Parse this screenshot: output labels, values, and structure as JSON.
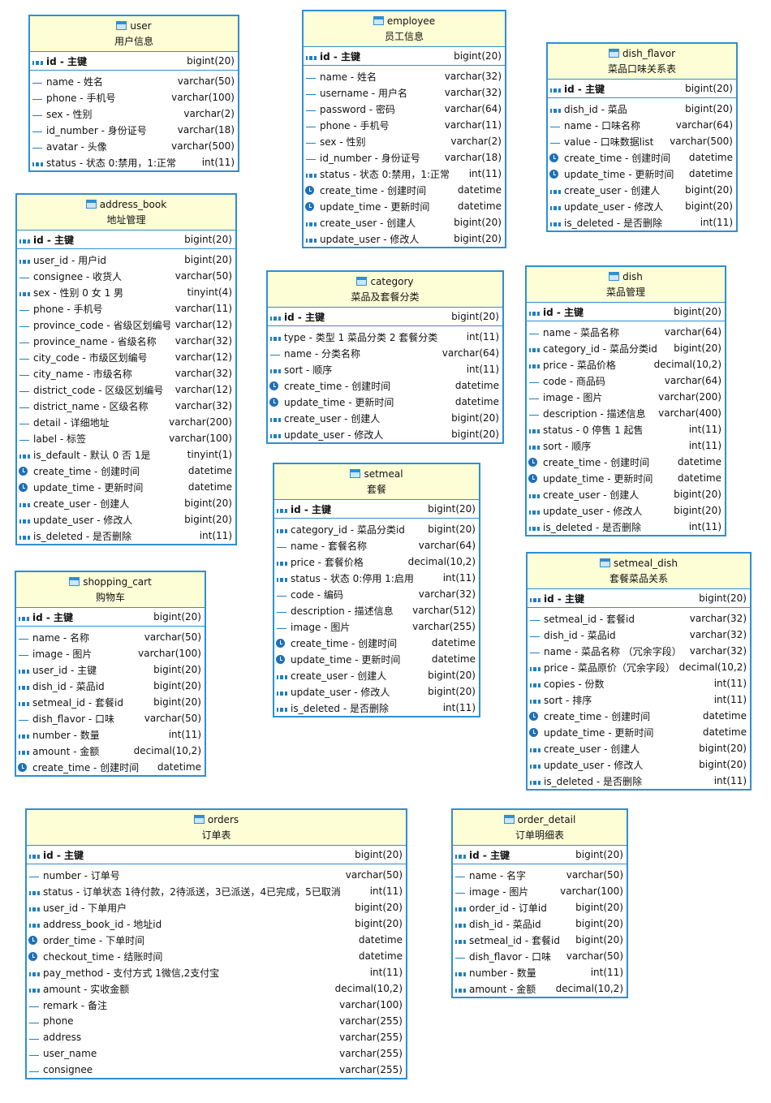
{
  "tables": [
    {
      "name": "user",
      "comment": "用户信息",
      "pk": [
        "id - 主键",
        "bigint(20)"
      ],
      "columns": [
        [
          "name - 姓名",
          "varchar(50)"
        ],
        [
          "phone - 手机号",
          "varchar(100)"
        ],
        [
          "sex - 性别",
          "varchar(2)"
        ],
        [
          "id_number - 身份证号",
          "varchar(18)"
        ],
        [
          "avatar - 头像",
          "varchar(500)"
        ],
        [
          "status - 状态 0:禁用，1:正常",
          "int(11)"
        ]
      ]
    },
    {
      "name": "employee",
      "comment": "员工信息",
      "pk": [
        "id - 主键",
        "bigint(20)"
      ],
      "columns": [
        [
          "name - 姓名",
          "varchar(32)"
        ],
        [
          "username - 用户名",
          "varchar(32)"
        ],
        [
          "password - 密码",
          "varchar(64)"
        ],
        [
          "phone - 手机号",
          "varchar(11)"
        ],
        [
          "sex - 性别",
          "varchar(2)"
        ],
        [
          "id_number - 身份证号",
          "varchar(18)"
        ],
        [
          "status - 状态 0:禁用，1:正常",
          "int(11)"
        ],
        [
          "create_time - 创建时间",
          "datetime"
        ],
        [
          "update_time - 更新时间",
          "datetime"
        ],
        [
          "create_user - 创建人",
          "bigint(20)"
        ],
        [
          "update_user - 修改人",
          "bigint(20)"
        ]
      ]
    },
    {
      "name": "dish_flavor",
      "comment": "菜品口味关系表",
      "pk": [
        "id - 主键",
        "bigint(20)"
      ],
      "columns": [
        [
          "dish_id - 菜品",
          "bigint(20)"
        ],
        [
          "name - 口味名称",
          "varchar(64)"
        ],
        [
          "value - 口味数据list",
          "varchar(500)"
        ],
        [
          "create_time - 创建时间",
          "datetime"
        ],
        [
          "update_time - 更新时间",
          "datetime"
        ],
        [
          "create_user - 创建人",
          "bigint(20)"
        ],
        [
          "update_user - 修改人",
          "bigint(20)"
        ],
        [
          "is_deleted - 是否删除",
          "int(11)"
        ]
      ]
    },
    {
      "name": "address_book",
      "comment": "地址管理",
      "pk": [
        "id - 主键",
        "bigint(20)"
      ],
      "columns": [
        [
          "user_id - 用户id",
          "bigint(20)"
        ],
        [
          "consignee - 收货人",
          "varchar(50)"
        ],
        [
          "sex - 性别 0 女 1 男",
          "tinyint(4)"
        ],
        [
          "phone - 手机号",
          "varchar(11)"
        ],
        [
          "province_code - 省级区划编号",
          "varchar(12)"
        ],
        [
          "province_name - 省级名称",
          "varchar(32)"
        ],
        [
          "city_code - 市级区划编号",
          "varchar(12)"
        ],
        [
          "city_name - 市级名称",
          "varchar(32)"
        ],
        [
          "district_code - 区级区划编号",
          "varchar(12)"
        ],
        [
          "district_name - 区级名称",
          "varchar(32)"
        ],
        [
          "detail - 详细地址",
          "varchar(200)"
        ],
        [
          "label - 标签",
          "varchar(100)"
        ],
        [
          "is_default - 默认 0 否 1是",
          "tinyint(1)"
        ],
        [
          "create_time - 创建时间",
          "datetime"
        ],
        [
          "update_time - 更新时间",
          "datetime"
        ],
        [
          "create_user - 创建人",
          "bigint(20)"
        ],
        [
          "update_user - 修改人",
          "bigint(20)"
        ],
        [
          "is_deleted - 是否删除",
          "int(11)"
        ]
      ]
    },
    {
      "name": "category",
      "comment": "菜品及套餐分类",
      "pk": [
        "id - 主键",
        "bigint(20)"
      ],
      "columns": [
        [
          "type - 类型   1 菜品分类 2 套餐分类",
          "int(11)"
        ],
        [
          "name - 分类名称",
          "varchar(64)"
        ],
        [
          "sort - 顺序",
          "int(11)"
        ],
        [
          "create_time - 创建时间",
          "datetime"
        ],
        [
          "update_time - 更新时间",
          "datetime"
        ],
        [
          "create_user - 创建人",
          "bigint(20)"
        ],
        [
          "update_user - 修改人",
          "bigint(20)"
        ]
      ]
    },
    {
      "name": "dish",
      "comment": "菜品管理",
      "pk": [
        "id - 主键",
        "bigint(20)"
      ],
      "columns": [
        [
          "name - 菜品名称",
          "varchar(64)"
        ],
        [
          "category_id - 菜品分类id",
          "bigint(20)"
        ],
        [
          "price - 菜品价格",
          "decimal(10,2)"
        ],
        [
          "code - 商品码",
          "varchar(64)"
        ],
        [
          "image - 图片",
          "varchar(200)"
        ],
        [
          "description - 描述信息",
          "varchar(400)"
        ],
        [
          "status - 0 停售 1 起售",
          "int(11)"
        ],
        [
          "sort - 顺序",
          "int(11)"
        ],
        [
          "create_time - 创建时间",
          "datetime"
        ],
        [
          "update_time - 更新时间",
          "datetime"
        ],
        [
          "create_user - 创建人",
          "bigint(20)"
        ],
        [
          "update_user - 修改人",
          "bigint(20)"
        ],
        [
          "is_deleted - 是否删除",
          "int(11)"
        ]
      ]
    },
    {
      "name": "shopping_cart",
      "comment": "购物车",
      "pk": [
        "id - 主键",
        "bigint(20)"
      ],
      "columns": [
        [
          "name - 名称",
          "varchar(50)"
        ],
        [
          "image - 图片",
          "varchar(100)"
        ],
        [
          "user_id - 主键",
          "bigint(20)"
        ],
        [
          "dish_id - 菜品id",
          "bigint(20)"
        ],
        [
          "setmeal_id - 套餐id",
          "bigint(20)"
        ],
        [
          "dish_flavor - 口味",
          "varchar(50)"
        ],
        [
          "number - 数量",
          "int(11)"
        ],
        [
          "amount - 金额",
          "decimal(10,2)"
        ],
        [
          "create_time - 创建时间",
          "datetime"
        ]
      ]
    },
    {
      "name": "setmeal",
      "comment": "套餐",
      "pk": [
        "id - 主键",
        "bigint(20)"
      ],
      "columns": [
        [
          "category_id - 菜品分类id",
          "bigint(20)"
        ],
        [
          "name - 套餐名称",
          "varchar(64)"
        ],
        [
          "price - 套餐价格",
          "decimal(10,2)"
        ],
        [
          "status - 状态 0:停用 1:启用",
          "int(11)"
        ],
        [
          "code - 编码",
          "varchar(32)"
        ],
        [
          "description - 描述信息",
          "varchar(512)"
        ],
        [
          "image - 图片",
          "varchar(255)"
        ],
        [
          "create_time - 创建时间",
          "datetime"
        ],
        [
          "update_time - 更新时间",
          "datetime"
        ],
        [
          "create_user - 创建人",
          "bigint(20)"
        ],
        [
          "update_user - 修改人",
          "bigint(20)"
        ],
        [
          "is_deleted - 是否删除",
          "int(11)"
        ]
      ]
    },
    {
      "name": "setmeal_dish",
      "comment": "套餐菜品关系",
      "pk": [
        "id - 主键",
        "bigint(20)"
      ],
      "columns": [
        [
          "setmeal_id - 套餐id",
          "varchar(32)"
        ],
        [
          "dish_id - 菜品id",
          "varchar(32)"
        ],
        [
          "name - 菜品名称 （冗余字段）",
          "varchar(32)"
        ],
        [
          "price - 菜品原价（冗余字段）",
          "decimal(10,2)"
        ],
        [
          "copies - 份数",
          "int(11)"
        ],
        [
          "sort - 排序",
          "int(11)"
        ],
        [
          "create_time - 创建时间",
          "datetime"
        ],
        [
          "update_time - 更新时间",
          "datetime"
        ],
        [
          "create_user - 创建人",
          "bigint(20)"
        ],
        [
          "update_user - 修改人",
          "bigint(20)"
        ],
        [
          "is_deleted - 是否删除",
          "int(11)"
        ]
      ]
    },
    {
      "name": "orders",
      "comment": "订单表",
      "pk": [
        "id - 主键",
        "bigint(20)"
      ],
      "columns": [
        [
          "number - 订单号",
          "varchar(50)"
        ],
        [
          "status - 订单状态 1待付款，2待派送，3已派送，4已完成，5已取消",
          "int(11)"
        ],
        [
          "user_id - 下单用户",
          "bigint(20)"
        ],
        [
          "address_book_id - 地址id",
          "bigint(20)"
        ],
        [
          "order_time - 下单时间",
          "datetime"
        ],
        [
          "checkout_time - 结账时间",
          "datetime"
        ],
        [
          "pay_method - 支付方式 1微信,2支付宝",
          "int(11)"
        ],
        [
          "amount - 实收金额",
          "decimal(10,2)"
        ],
        [
          "remark - 备注",
          "varchar(100)"
        ],
        [
          "phone",
          "varchar(255)"
        ],
        [
          "address",
          "varchar(255)"
        ],
        [
          "user_name",
          "varchar(255)"
        ],
        [
          "consignee",
          "varchar(255)"
        ]
      ]
    },
    {
      "name": "order_detail",
      "comment": "订单明细表",
      "pk": [
        "id - 主键",
        "bigint(20)"
      ],
      "columns": [
        [
          "name - 名字",
          "varchar(50)"
        ],
        [
          "image - 图片",
          "varchar(100)"
        ],
        [
          "order_id - 订单id",
          "bigint(20)"
        ],
        [
          "dish_id - 菜品id",
          "bigint(20)"
        ],
        [
          "setmeal_id - 套餐id",
          "bigint(20)"
        ],
        [
          "dish_flavor - 口味",
          "varchar(50)"
        ],
        [
          "number - 数量",
          "int(11)"
        ],
        [
          "amount - 金额",
          "decimal(10,2)"
        ]
      ]
    }
  ]
}
